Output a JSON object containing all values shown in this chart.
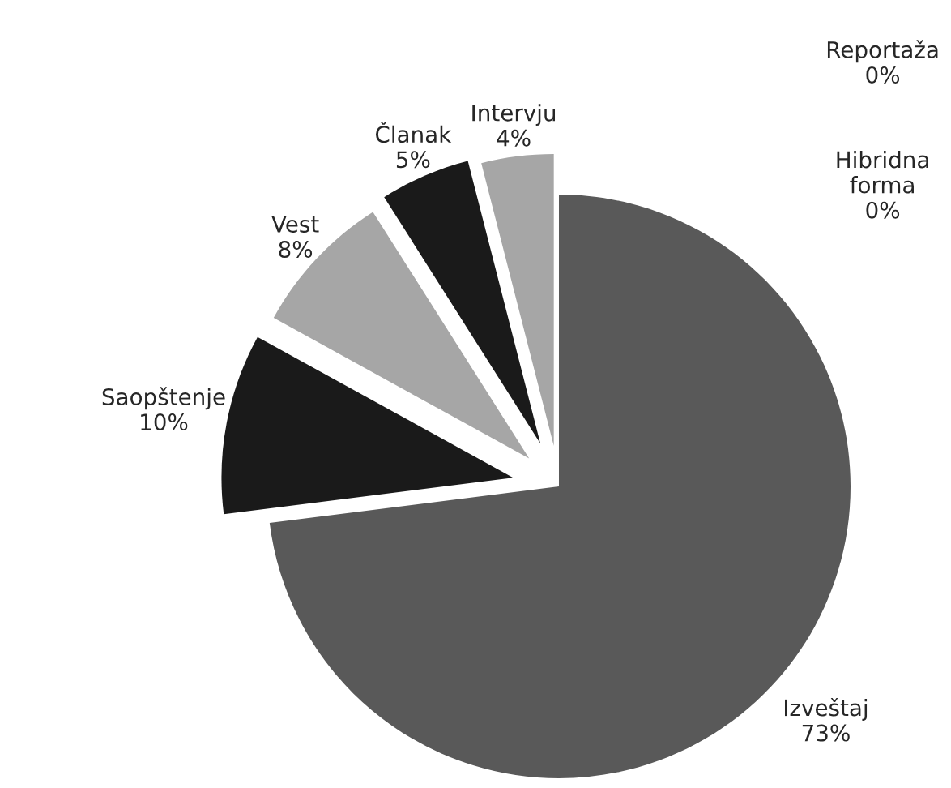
{
  "chart_data": {
    "type": "pie",
    "categories": [
      "Izveštaj",
      "Saopštenje",
      "Vest",
      "Članak",
      "Intervju",
      "Reportaža",
      "Hibridna forma"
    ],
    "values": [
      73,
      10,
      8,
      5,
      4,
      0,
      0
    ],
    "value_labels": [
      "73%",
      "10%",
      "8%",
      "5%",
      "4%",
      "0%",
      "0%"
    ],
    "colors": [
      "#595959",
      "#1a1a1a",
      "#a6a6a6",
      "#1a1a1a",
      "#a6a6a6",
      "#808080",
      "#404040"
    ],
    "legend": false
  }
}
